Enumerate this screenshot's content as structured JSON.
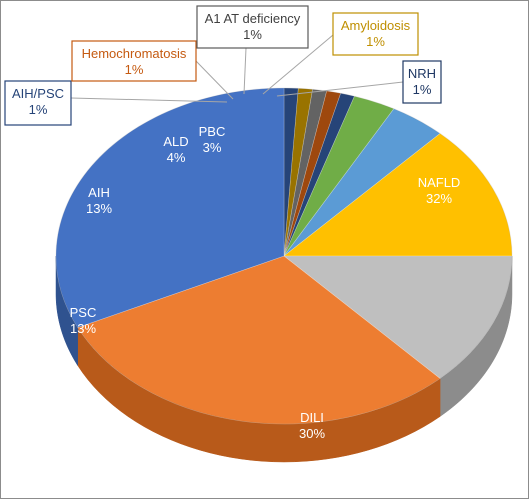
{
  "chart_data": {
    "type": "pie",
    "style": "3d-tilted",
    "title": "",
    "categories": [
      "NAFLD",
      "DILI",
      "PSC",
      "AIH",
      "ALD",
      "PBC",
      "AIH/PSC",
      "NRH",
      "Hemochromatosis",
      "A1 AT deficiency",
      "Amyloidosis"
    ],
    "slices": [
      {
        "name": "NAFLD",
        "label": "NAFLD",
        "pct_label": "32%",
        "value": 32,
        "color": "#4472C4",
        "side": "#2F528F",
        "text_color": "#ffffff"
      },
      {
        "name": "DILI",
        "label": "DILI",
        "pct_label": "30%",
        "value": 30,
        "color": "#ED7D31",
        "side": "#B85A1A",
        "text_color": "#ffffff"
      },
      {
        "name": "PSC",
        "label": "PSC",
        "pct_label": "13%",
        "value": 13,
        "color": "#BFBFBF",
        "side": "#8C8C8C",
        "text_color": "#ffffff"
      },
      {
        "name": "AIH",
        "label": "AIH",
        "pct_label": "13%",
        "value": 13,
        "color": "#FFC000",
        "side": "#BF9000",
        "text_color": "#ffffff"
      },
      {
        "name": "ALD",
        "label": "ALD",
        "pct_label": "4%",
        "value": 4,
        "color": "#5B9BD5",
        "side": "#2E75B6",
        "text_color": "#ffffff"
      },
      {
        "name": "PBC",
        "label": "PBC",
        "pct_label": "3%",
        "value": 3,
        "color": "#70AD47",
        "side": "#507E32",
        "text_color": "#ffffff"
      },
      {
        "name": "AIH/PSC",
        "label": "AIH/PSC",
        "pct_label": "1%",
        "value": 1,
        "color": "#264478",
        "side": "#1A2F55",
        "text_color": "#264478"
      },
      {
        "name": "NRH",
        "label": "NRH",
        "pct_label": "1%",
        "value": 1,
        "color": "#264478",
        "side": "#1A2F55",
        "text_color": "#1F3864"
      },
      {
        "name": "Hemochromatosis",
        "label": "Hemochromatosis",
        "pct_label": "1%",
        "value": 1,
        "color": "#9E480E",
        "side": "#6E3209",
        "text_color": "#C55A11"
      },
      {
        "name": "A1 AT deficiency",
        "label": "A1 AT deficiency",
        "pct_label": "1%",
        "value": 1,
        "color": "#636363",
        "side": "#404040",
        "text_color": "#404040"
      },
      {
        "name": "Amyloidosis",
        "label": "Amyloidosis",
        "pct_label": "1%",
        "value": 1,
        "color": "#997300",
        "side": "#6B5000",
        "text_color": "#BF8F00"
      }
    ],
    "draw_order": [
      "NRH",
      "Amyloidosis",
      "A1 AT deficiency",
      "Hemochromatosis",
      "AIH/PSC",
      "PBC",
      "ALD",
      "AIH",
      "PSC",
      "DILI",
      "NAFLD"
    ],
    "legend": "none",
    "data_labels": "category-and-percent"
  }
}
